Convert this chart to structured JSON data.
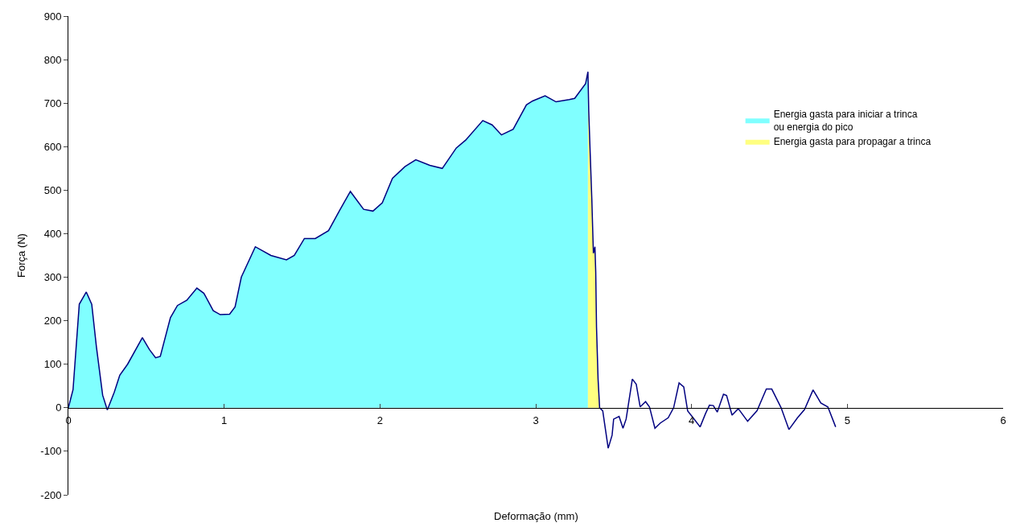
{
  "chart_data": {
    "type": "area",
    "xlabel": "Deformação (mm)",
    "ylabel": "Força (N)",
    "xlim": [
      0,
      6
    ],
    "ylim": [
      -200,
      900
    ],
    "xticks": [
      0,
      1,
      2,
      3,
      4,
      5,
      6
    ],
    "yticks": [
      -200,
      -100,
      0,
      100,
      200,
      300,
      400,
      500,
      600,
      700,
      800,
      900
    ],
    "legend": "top right",
    "marker": "none",
    "series": [
      {
        "name": "Energia gasta para iniciar a trinca\nou energia do pico",
        "color": "#80ffff",
        "x": [
          0,
          0.03,
          0.07,
          0.115,
          0.15,
          0.18,
          0.22,
          0.25,
          0.295,
          0.33,
          0.38,
          0.475,
          0.52,
          0.56,
          0.59,
          0.655,
          0.7,
          0.76,
          0.825,
          0.87,
          0.93,
          0.975,
          1.035,
          1.07,
          1.11,
          1.2,
          1.3,
          1.4,
          1.45,
          1.515,
          1.585,
          1.67,
          1.74,
          1.81,
          1.895,
          1.955,
          2.015,
          2.08,
          2.16,
          2.23,
          2.32,
          2.4,
          2.49,
          2.55,
          2.66,
          2.72,
          2.78,
          2.855,
          2.94,
          2.98,
          3.06,
          3.13,
          3.215,
          3.25,
          3.32,
          3.335
        ],
        "values": [
          0,
          42,
          238,
          266,
          238,
          140,
          29,
          -5,
          36,
          75,
          100,
          161,
          134,
          115,
          118,
          207,
          235,
          247,
          275,
          263,
          223,
          214,
          215,
          232,
          300,
          370,
          350,
          340,
          350,
          389,
          389,
          407,
          453,
          497,
          456,
          452,
          471,
          527,
          554,
          570,
          557,
          550,
          597,
          615,
          660,
          650,
          627,
          640,
          696,
          705,
          717,
          703,
          708,
          711,
          745,
          772
        ]
      },
      {
        "name": "Energia gasta para propagar a trinca",
        "color": "#ffff80",
        "x": [
          3.335,
          3.34,
          3.35,
          3.36,
          3.365,
          3.37,
          3.38,
          3.385,
          3.39,
          3.4,
          3.41
        ],
        "values": [
          772,
          683,
          579,
          478,
          416,
          355,
          370,
          312,
          186,
          66,
          0
        ]
      },
      {
        "type": "line",
        "color": "#000080",
        "x": [
          0,
          0.03,
          0.07,
          0.115,
          0.15,
          0.18,
          0.22,
          0.25,
          0.295,
          0.33,
          0.38,
          0.475,
          0.52,
          0.56,
          0.59,
          0.655,
          0.7,
          0.76,
          0.825,
          0.87,
          0.93,
          0.975,
          1.035,
          1.07,
          1.11,
          1.2,
          1.3,
          1.4,
          1.45,
          1.515,
          1.585,
          1.67,
          1.74,
          1.81,
          1.895,
          1.955,
          2.015,
          2.08,
          2.16,
          2.23,
          2.32,
          2.4,
          2.49,
          2.55,
          2.66,
          2.72,
          2.78,
          2.855,
          2.94,
          2.98,
          3.06,
          3.13,
          3.215,
          3.25,
          3.32,
          3.335,
          3.34,
          3.35,
          3.36,
          3.365,
          3.37,
          3.38,
          3.385,
          3.39,
          3.4,
          3.41,
          3.43,
          3.445,
          3.465,
          3.49,
          3.5,
          3.535,
          3.56,
          3.58,
          3.62,
          3.645,
          3.67,
          3.705,
          3.73,
          3.765,
          3.8,
          3.85,
          3.885,
          3.92,
          3.95,
          3.975,
          4.01,
          4.055,
          4.09,
          4.115,
          4.14,
          4.165,
          4.205,
          4.225,
          4.26,
          4.3,
          4.36,
          4.42,
          4.48,
          4.515,
          4.575,
          4.625,
          4.68,
          4.725,
          4.78,
          4.83,
          4.875,
          4.925
        ],
        "values": [
          0,
          42,
          238,
          266,
          238,
          140,
          29,
          -5,
          36,
          75,
          100,
          161,
          134,
          115,
          118,
          207,
          235,
          247,
          275,
          263,
          223,
          214,
          215,
          232,
          300,
          370,
          350,
          340,
          350,
          389,
          389,
          407,
          453,
          497,
          456,
          452,
          471,
          527,
          554,
          570,
          557,
          550,
          597,
          615,
          660,
          650,
          627,
          640,
          696,
          705,
          717,
          703,
          708,
          711,
          745,
          772,
          683,
          579,
          478,
          416,
          355,
          370,
          312,
          186,
          66,
          0,
          -7,
          -44,
          -93,
          -63,
          -26,
          -20,
          -47,
          -26,
          66,
          54,
          2,
          14,
          2,
          -47,
          -35,
          -23,
          0,
          57,
          48,
          -7,
          -23,
          -44,
          -13,
          6,
          5,
          -10,
          31,
          28,
          -17,
          -2,
          -31,
          -7,
          43,
          43,
          0,
          -50,
          -23,
          -4,
          41,
          11,
          2,
          -44
        ]
      }
    ]
  }
}
